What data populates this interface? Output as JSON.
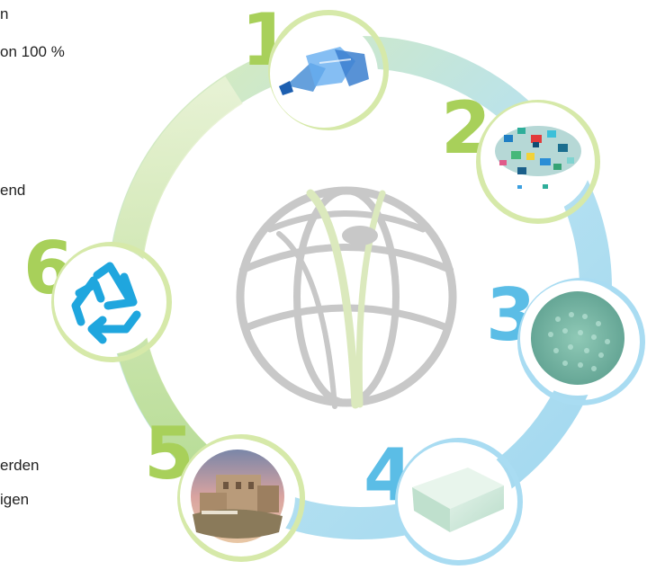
{
  "text_fragments": {
    "top_1": "n",
    "top_2": "on 100 %",
    "mid": "end",
    "bottom_1": "erden",
    "bottom_2": "igen"
  },
  "steps": [
    {
      "number": "1",
      "icon": "plastic-bottles-photo",
      "color": "#a8d05a"
    },
    {
      "number": "2",
      "icon": "plastic-flakes-photo",
      "color": "#a8d05a"
    },
    {
      "number": "3",
      "icon": "plastic-pellets-photo",
      "color": "#5bbde6"
    },
    {
      "number": "4",
      "icon": "foam-block-photo",
      "color": "#5bbde6"
    },
    {
      "number": "5",
      "icon": "building-site-photo",
      "color": "#a8d05a"
    },
    {
      "number": "6",
      "icon": "recycle-icon",
      "color": "#a8d05a"
    }
  ],
  "colors": {
    "green": "#a8d05a",
    "blue": "#5bbde6",
    "globe_gray": "#c8c8c8",
    "globe_green": "#dbe9bd"
  }
}
